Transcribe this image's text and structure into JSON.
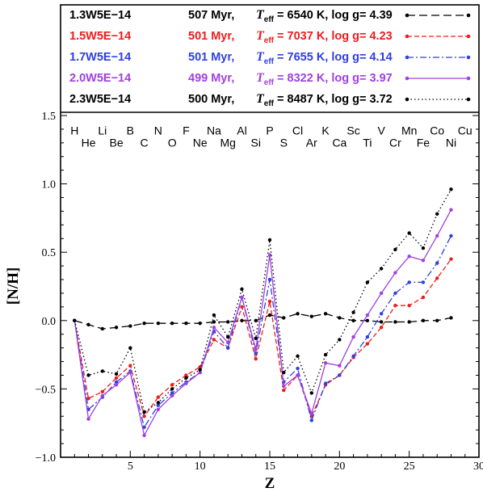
{
  "chart_data": {
    "type": "line",
    "xlabel": "Z",
    "ylabel": "[N/H]",
    "xlim": [
      0,
      30
    ],
    "ylim": [
      -1.0,
      1.5
    ],
    "xticks": [
      5,
      10,
      15,
      20,
      25,
      30
    ],
    "yticks": [
      -1.0,
      -0.5,
      0.0,
      0.5,
      1.0,
      1.5
    ],
    "grid": false,
    "legend_position": "top",
    "elements_top": [
      {
        "z": 1,
        "sym": "H"
      },
      {
        "z": 3,
        "sym": "Li"
      },
      {
        "z": 5,
        "sym": "B"
      },
      {
        "z": 7,
        "sym": "N"
      },
      {
        "z": 9,
        "sym": "F"
      },
      {
        "z": 11,
        "sym": "Na"
      },
      {
        "z": 13,
        "sym": "Al"
      },
      {
        "z": 15,
        "sym": "P"
      },
      {
        "z": 17,
        "sym": "Cl"
      },
      {
        "z": 19,
        "sym": "K"
      },
      {
        "z": 21,
        "sym": "Sc"
      },
      {
        "z": 23,
        "sym": "V"
      },
      {
        "z": 25,
        "sym": "Mn"
      },
      {
        "z": 27,
        "sym": "Co"
      },
      {
        "z": 29,
        "sym": "Cu"
      }
    ],
    "elements_bottom": [
      {
        "z": 2,
        "sym": "He"
      },
      {
        "z": 4,
        "sym": "Be"
      },
      {
        "z": 6,
        "sym": "C"
      },
      {
        "z": 8,
        "sym": "O"
      },
      {
        "z": 10,
        "sym": "Ne"
      },
      {
        "z": 12,
        "sym": "Mg"
      },
      {
        "z": 14,
        "sym": "Si"
      },
      {
        "z": 16,
        "sym": "S"
      },
      {
        "z": 18,
        "sym": "Ar"
      },
      {
        "z": 20,
        "sym": "Ca"
      },
      {
        "z": 22,
        "sym": "Ti"
      },
      {
        "z": 24,
        "sym": "Cr"
      },
      {
        "z": 26,
        "sym": "Fe"
      },
      {
        "z": 28,
        "sym": "Ni"
      }
    ],
    "series": [
      {
        "name": "1.3W5E−14",
        "age": "507 Myr,",
        "teff": "= 6540 K, log g= 4.39",
        "color": "#000000",
        "dash": "10,5",
        "x": [
          1,
          2,
          3,
          4,
          5,
          6,
          7,
          8,
          9,
          10,
          11,
          12,
          13,
          14,
          15,
          16,
          17,
          18,
          19,
          20,
          21,
          22,
          23,
          24,
          25,
          26,
          27,
          28
        ],
        "y": [
          0.0,
          -0.03,
          -0.06,
          -0.05,
          -0.04,
          -0.02,
          -0.02,
          -0.02,
          -0.02,
          -0.02,
          -0.01,
          -0.01,
          0.0,
          0.0,
          0.04,
          0.02,
          0.05,
          0.03,
          0.05,
          0.02,
          0.0,
          0.0,
          -0.01,
          -0.01,
          -0.01,
          0.0,
          0.0,
          0.02
        ]
      },
      {
        "name": "1.5W5E−14",
        "age": "501 Myr,",
        "teff": "= 7037 K, log g= 4.23",
        "color": "#ee1c1c",
        "dash": "6,3",
        "x": [
          1,
          2,
          3,
          4,
          5,
          6,
          7,
          8,
          9,
          10,
          11,
          12,
          13,
          14,
          15,
          16,
          17,
          18,
          19,
          20,
          21,
          22,
          23,
          24,
          25,
          26,
          27,
          28
        ],
        "y": [
          0.0,
          -0.57,
          -0.52,
          -0.42,
          -0.33,
          -0.7,
          -0.56,
          -0.47,
          -0.4,
          -0.34,
          -0.14,
          -0.2,
          0.1,
          -0.28,
          0.14,
          -0.51,
          -0.4,
          -0.7,
          -0.47,
          -0.4,
          -0.27,
          -0.17,
          -0.05,
          0.11,
          0.11,
          0.17,
          0.31,
          0.45
        ]
      },
      {
        "name": "1.7W5E−14",
        "age": "501 Myr,",
        "teff": "= 7655 K, log g= 4.14",
        "color": "#2f3fe0",
        "dash": "8,3,2,3",
        "x": [
          1,
          2,
          3,
          4,
          5,
          6,
          7,
          8,
          9,
          10,
          11,
          12,
          13,
          14,
          15,
          16,
          17,
          18,
          19,
          20,
          21,
          22,
          23,
          24,
          25,
          26,
          27,
          28
        ],
        "y": [
          0.0,
          -0.65,
          -0.56,
          -0.45,
          -0.37,
          -0.78,
          -0.62,
          -0.53,
          -0.45,
          -0.38,
          -0.08,
          -0.2,
          0.17,
          -0.24,
          0.3,
          -0.45,
          -0.35,
          -0.73,
          -0.46,
          -0.4,
          -0.26,
          -0.12,
          0.05,
          0.2,
          0.28,
          0.28,
          0.42,
          0.62
        ]
      },
      {
        "name": "2.0W5E−14",
        "age": "499 Myr,",
        "teff": "= 8322 K, log g= 3.97",
        "color": "#a040e0",
        "dash": "",
        "x": [
          1,
          2,
          3,
          4,
          5,
          6,
          7,
          8,
          9,
          10,
          11,
          12,
          13,
          14,
          15,
          16,
          17,
          18,
          19,
          20,
          21,
          22,
          23,
          24,
          25,
          26,
          27,
          28
        ],
        "y": [
          0.0,
          -0.72,
          -0.55,
          -0.47,
          -0.38,
          -0.84,
          -0.65,
          -0.55,
          -0.46,
          -0.38,
          -0.05,
          -0.16,
          0.17,
          -0.21,
          0.48,
          -0.48,
          -0.4,
          -0.68,
          -0.31,
          -0.33,
          -0.12,
          0.04,
          0.2,
          0.35,
          0.47,
          0.44,
          0.62,
          0.81
        ]
      },
      {
        "name": "2.3W5E−14",
        "age": "500 Myr,",
        "teff": "= 8487 K, log g= 3.72",
        "color": "#000000",
        "dash": "1.5,3",
        "x": [
          1,
          2,
          3,
          4,
          5,
          6,
          7,
          8,
          9,
          10,
          11,
          12,
          13,
          14,
          15,
          16,
          17,
          18,
          19,
          20,
          21,
          22,
          23,
          24,
          25,
          26,
          27,
          28
        ],
        "y": [
          0.0,
          -0.4,
          -0.37,
          -0.39,
          -0.2,
          -0.67,
          -0.6,
          -0.5,
          -0.42,
          -0.36,
          0.04,
          -0.12,
          0.23,
          -0.13,
          0.59,
          -0.38,
          -0.26,
          -0.53,
          -0.25,
          -0.14,
          0.06,
          0.28,
          0.38,
          0.52,
          0.64,
          0.53,
          0.78,
          0.96
        ]
      }
    ]
  },
  "legend_teff_symbol": "T",
  "legend_teff_sub": "eff"
}
